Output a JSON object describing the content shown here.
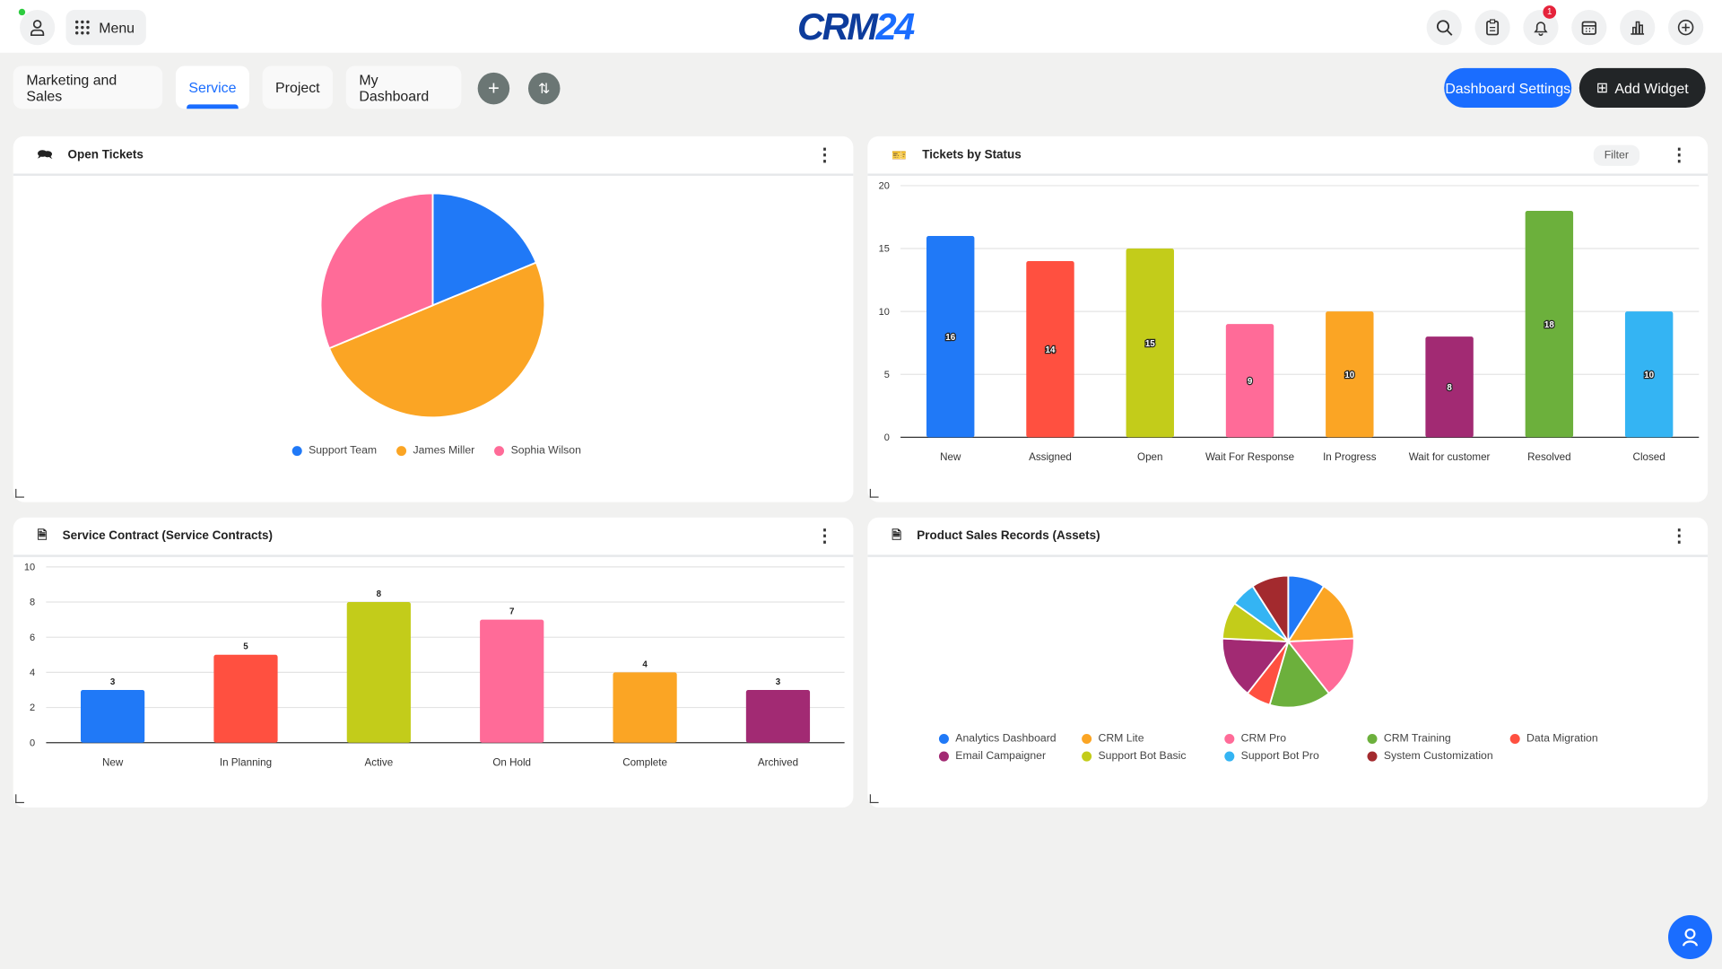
{
  "header": {
    "menu_label": "Menu",
    "logo_a": "CRM",
    "logo_b": "24",
    "notification_count": "1"
  },
  "tabs": [
    {
      "label": "Marketing and Sales"
    },
    {
      "label": "Service",
      "active": true
    },
    {
      "label": "Project"
    },
    {
      "label": "My Dashboard"
    }
  ],
  "actions": {
    "dashboard_settings": "Dashboard Settings",
    "add_widget": "Add Widget"
  },
  "widgets": {
    "open_tickets": {
      "title": "Open Tickets"
    },
    "tickets_by_status": {
      "title": "Tickets by Status",
      "filter": "Filter"
    },
    "service_contract": {
      "title": "Service Contract (Service Contracts)"
    },
    "product_sales": {
      "title": "Product Sales Records (Assets)"
    }
  },
  "chart_data": [
    {
      "type": "pie",
      "title": "Open Tickets",
      "categories": [
        "Support Team",
        "James Miller",
        "Sophia Wilson"
      ],
      "values": [
        3,
        8,
        5
      ],
      "colors": [
        "#2079f7",
        "#fba524",
        "#ff6b98"
      ],
      "legend": "bottom"
    },
    {
      "type": "bar",
      "title": "Tickets by Status",
      "categories": [
        "New",
        "Assigned",
        "Open",
        "Wait For Response",
        "In Progress",
        "Wait for customer",
        "Resolved",
        "Closed"
      ],
      "values": [
        16,
        14,
        15,
        9,
        10,
        8,
        18,
        10
      ],
      "colors": [
        "#2079f7",
        "#ff5040",
        "#c3cc1a",
        "#ff6b98",
        "#fba524",
        "#a22a73",
        "#6cb03c",
        "#34b4f3"
      ],
      "ylim": [
        0,
        20
      ],
      "yticks": [
        0,
        5,
        10,
        15,
        20
      ],
      "labels": "inside"
    },
    {
      "type": "bar",
      "title": "Service Contract (Service Contracts)",
      "categories": [
        "New",
        "In Planning",
        "Active",
        "On Hold",
        "Complete",
        "Archived"
      ],
      "values": [
        3,
        5,
        8,
        7,
        4,
        3
      ],
      "colors": [
        "#2079f7",
        "#ff5040",
        "#c3cc1a",
        "#ff6b98",
        "#fba524",
        "#a22a73"
      ],
      "ylim": [
        0,
        10
      ],
      "yticks": [
        0,
        2,
        4,
        6,
        8,
        10
      ],
      "labels": "above"
    },
    {
      "type": "pie",
      "title": "Product Sales Records (Assets)",
      "categories": [
        "Analytics Dashboard",
        "CRM Lite",
        "CRM Pro",
        "CRM Training",
        "Data Migration",
        "Email Campaigner",
        "Support Bot Basic",
        "Support Bot Pro",
        "System Customization"
      ],
      "values": [
        3,
        5,
        5,
        5,
        2,
        5,
        3,
        2,
        3
      ],
      "colors": [
        "#2079f7",
        "#fba524",
        "#ff6b98",
        "#6cb03c",
        "#ff5040",
        "#a22a73",
        "#c3cc1a",
        "#34b4f3",
        "#a32a2e"
      ],
      "legend": "bottom"
    }
  ]
}
